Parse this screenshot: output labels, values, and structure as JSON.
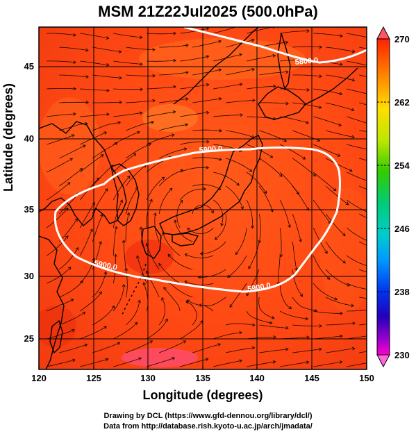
{
  "title": "MSM 21Z22Jul2025 (500.0hPa)",
  "x_axis": {
    "label": "Longitude (degrees)",
    "ticks": [
      "120",
      "125",
      "130",
      "135",
      "140",
      "145",
      "150"
    ]
  },
  "y_axis": {
    "label": "Latitude  (degrees)",
    "ticks": [
      "25",
      "30",
      "35",
      "40",
      "45"
    ]
  },
  "colorbar": {
    "ticks": [
      "270",
      "262",
      "254",
      "246",
      "238",
      "230"
    ],
    "colors": [
      "#ff2200",
      "#ff7a00",
      "#ffcc00",
      "#c8e600",
      "#44cc00",
      "#00cc66",
      "#00cccc",
      "#0099ff",
      "#0044ff",
      "#2200cc",
      "#8800cc",
      "#ff00cc"
    ]
  },
  "contours": [
    {
      "label": "5800.0"
    },
    {
      "label": "5900.0"
    },
    {
      "label": "5900.0"
    },
    {
      "label": "5900.0"
    }
  ],
  "credits": {
    "line1": "Drawing by DCL (https://www.gfd-dennou.org/library/dcl/)",
    "line2": "Data from http://database.rish.kyoto-u.ac.jp/arch/jmadata/"
  },
  "chart_data": {
    "type": "heatmap",
    "title": "MSM 21Z22Jul2025 (500.0hPa)",
    "xlabel": "Longitude (degrees)",
    "ylabel": "Latitude  (degrees)",
    "xlim": [
      120,
      150
    ],
    "ylim": [
      22.5,
      47.5
    ],
    "colorbar_range": [
      230,
      270
    ],
    "colorbar_ticks": [
      230,
      238,
      246,
      254,
      262,
      270
    ],
    "contour_levels": [
      5800,
      5900
    ],
    "overlay": "streamlines",
    "grid": true
  }
}
